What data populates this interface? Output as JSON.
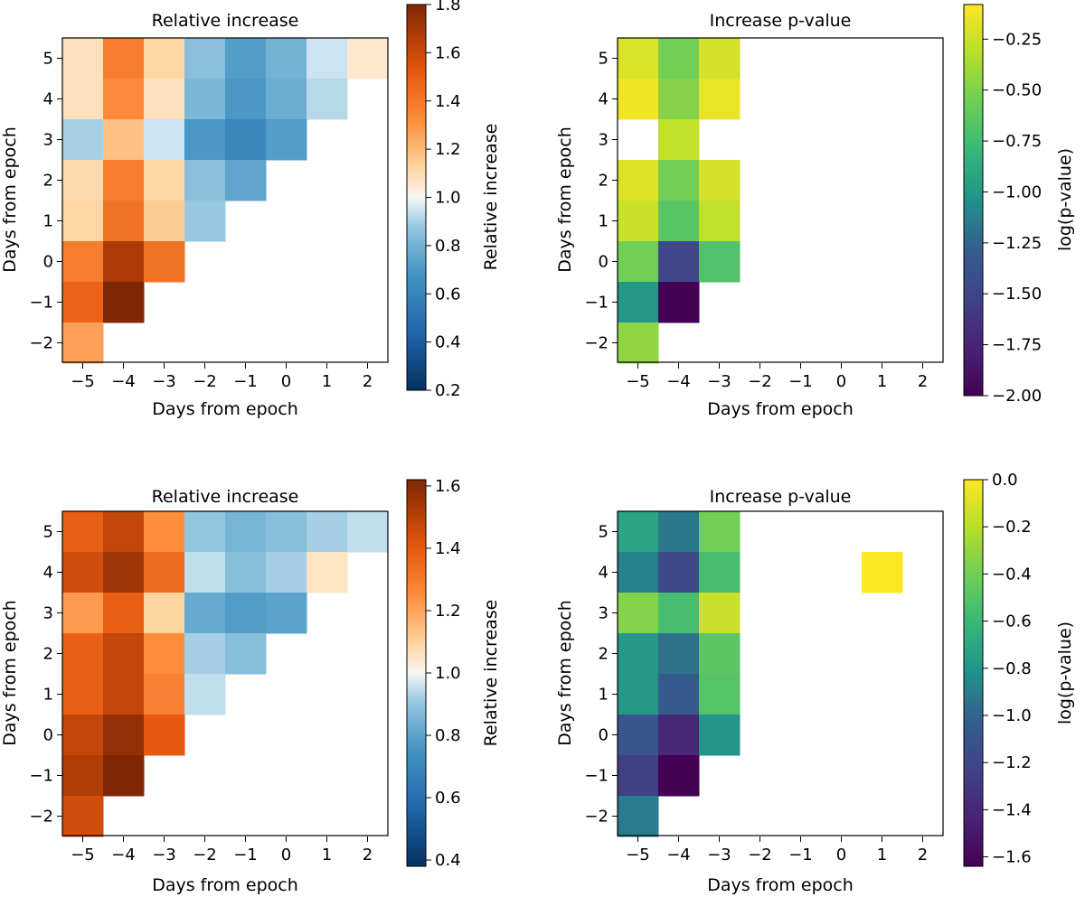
{
  "chart_data": [
    {
      "type": "heatmap",
      "title": "Relative increase",
      "xlabel": "Days from epoch",
      "ylabel": "Days from epoch",
      "colorbar_label": "Relative increase",
      "colormap": "diverging-blue-orange",
      "vmin": 0.2,
      "vmax": 1.8,
      "x_categories": [
        "−5",
        "−4",
        "−3",
        "−2",
        "−1",
        "0",
        "1",
        "2"
      ],
      "y_categories": [
        "5",
        "4",
        "3",
        "2",
        "1",
        "0",
        "−1",
        "−2"
      ],
      "colorbar_ticks": [
        "0.2",
        "0.4",
        "0.6",
        "0.8",
        "1.0",
        "1.2",
        "1.4",
        "1.6",
        "1.8"
      ],
      "colorbar_tick_values": [
        0.2,
        0.4,
        0.6,
        0.8,
        1.0,
        1.2,
        1.4,
        1.6,
        1.8
      ],
      "values": [
        [
          1.08,
          1.38,
          1.12,
          0.85,
          0.72,
          0.8,
          0.95,
          1.05
        ],
        [
          1.08,
          1.33,
          1.08,
          0.82,
          0.7,
          0.78,
          0.92,
          null
        ],
        [
          0.9,
          1.18,
          0.95,
          0.7,
          0.62,
          0.72,
          null,
          null
        ],
        [
          1.1,
          1.38,
          1.12,
          0.85,
          0.75,
          null,
          null,
          null
        ],
        [
          1.12,
          1.42,
          1.15,
          0.88,
          null,
          null,
          null,
          null
        ],
        [
          1.38,
          1.68,
          1.42,
          null,
          null,
          null,
          null,
          null
        ],
        [
          1.48,
          1.8,
          null,
          null,
          null,
          null,
          null,
          null
        ],
        [
          1.27,
          null,
          null,
          null,
          null,
          null,
          null,
          null
        ]
      ]
    },
    {
      "type": "heatmap",
      "title": "Increase p-value",
      "xlabel": "Days from epoch",
      "ylabel": "Days from epoch",
      "colorbar_label": "log(p-value)",
      "colormap": "viridis",
      "vmin": -2.0,
      "vmax": -0.08,
      "x_categories": [
        "−5",
        "−4",
        "−3",
        "−2",
        "−1",
        "0",
        "1",
        "2"
      ],
      "y_categories": [
        "5",
        "4",
        "3",
        "2",
        "1",
        "0",
        "−1",
        "−2"
      ],
      "colorbar_ticks": [
        "−2.00",
        "−1.75",
        "−1.50",
        "−1.25",
        "−1.00",
        "−0.75",
        "−0.50",
        "−0.25"
      ],
      "colorbar_tick_values": [
        -2.0,
        -1.75,
        -1.5,
        -1.25,
        -1.0,
        -0.75,
        -0.5,
        -0.25
      ],
      "values": [
        [
          -0.2,
          -0.55,
          -0.22,
          null,
          null,
          null,
          null,
          null
        ],
        [
          -0.12,
          -0.48,
          -0.15,
          null,
          null,
          null,
          null,
          null
        ],
        [
          null,
          -0.28,
          null,
          null,
          null,
          null,
          null,
          null
        ],
        [
          -0.18,
          -0.55,
          -0.22,
          null,
          null,
          null,
          null,
          null
        ],
        [
          -0.25,
          -0.65,
          -0.28,
          null,
          null,
          null,
          null,
          null
        ],
        [
          -0.55,
          -1.48,
          -0.68,
          null,
          null,
          null,
          null,
          null
        ],
        [
          -1.0,
          -2.0,
          null,
          null,
          null,
          null,
          null,
          null
        ],
        [
          -0.45,
          null,
          null,
          null,
          null,
          null,
          null,
          null
        ]
      ]
    },
    {
      "type": "heatmap",
      "title": "Relative increase",
      "xlabel": "Days from epoch",
      "ylabel": "Days from epoch",
      "colorbar_label": "Relative increase",
      "colormap": "diverging-blue-orange",
      "vmin": 0.38,
      "vmax": 1.62,
      "x_categories": [
        "−5",
        "−4",
        "−3",
        "−2",
        "−1",
        "0",
        "1",
        "2"
      ],
      "y_categories": [
        "5",
        "4",
        "3",
        "2",
        "1",
        "0",
        "−1",
        "−2"
      ],
      "colorbar_ticks": [
        "0.4",
        "0.6",
        "0.8",
        "1.0",
        "1.2",
        "1.4",
        "1.6"
      ],
      "colorbar_tick_values": [
        0.4,
        0.6,
        0.8,
        1.0,
        1.2,
        1.4,
        1.6
      ],
      "values": [
        [
          1.38,
          1.48,
          1.25,
          0.9,
          0.85,
          0.88,
          0.92,
          0.95
        ],
        [
          1.45,
          1.55,
          1.35,
          0.95,
          0.88,
          0.92,
          1.05,
          null
        ],
        [
          1.22,
          1.38,
          1.1,
          0.82,
          0.78,
          0.8,
          null,
          null
        ],
        [
          1.38,
          1.48,
          1.25,
          0.92,
          0.88,
          null,
          null,
          null
        ],
        [
          1.38,
          1.48,
          1.28,
          0.95,
          null,
          null,
          null,
          null
        ],
        [
          1.48,
          1.58,
          1.4,
          null,
          null,
          null,
          null,
          null
        ],
        [
          1.52,
          1.62,
          null,
          null,
          null,
          null,
          null,
          null
        ],
        [
          1.45,
          null,
          null,
          null,
          null,
          null,
          null,
          null
        ]
      ]
    },
    {
      "type": "heatmap",
      "title": "Increase p-value",
      "xlabel": "Days from epoch",
      "ylabel": "Days from epoch",
      "colorbar_label": "log(p-value)",
      "colormap": "viridis",
      "vmin": -1.64,
      "vmax": 0.0,
      "x_categories": [
        "−5",
        "−4",
        "−3",
        "−2",
        "−1",
        "0",
        "1",
        "2"
      ],
      "y_categories": [
        "5",
        "4",
        "3",
        "2",
        "1",
        "0",
        "−1",
        "−2"
      ],
      "colorbar_ticks": [
        "−1.6",
        "−1.4",
        "−1.2",
        "−1.0",
        "−0.8",
        "−0.6",
        "−0.4",
        "−0.2",
        "0.0"
      ],
      "colorbar_tick_values": [
        -1.6,
        -1.4,
        -1.2,
        -1.0,
        -0.8,
        -0.6,
        -0.4,
        -0.2,
        0.0
      ],
      "values": [
        [
          -0.72,
          -0.92,
          -0.4,
          null,
          null,
          null,
          null,
          null
        ],
        [
          -0.88,
          -1.18,
          -0.55,
          null,
          null,
          null,
          0.0,
          null
        ],
        [
          -0.35,
          -0.55,
          -0.15,
          null,
          null,
          null,
          null,
          null
        ],
        [
          -0.78,
          -0.95,
          -0.48,
          null,
          null,
          null,
          null,
          null
        ],
        [
          -0.78,
          -1.05,
          -0.5,
          null,
          null,
          null,
          null,
          null
        ],
        [
          -1.1,
          -1.4,
          -0.8,
          null,
          null,
          null,
          null,
          null
        ],
        [
          -1.25,
          -1.64,
          null,
          null,
          null,
          null,
          null,
          null
        ],
        [
          -0.9,
          null,
          null,
          null,
          null,
          null,
          null,
          null
        ]
      ]
    }
  ]
}
